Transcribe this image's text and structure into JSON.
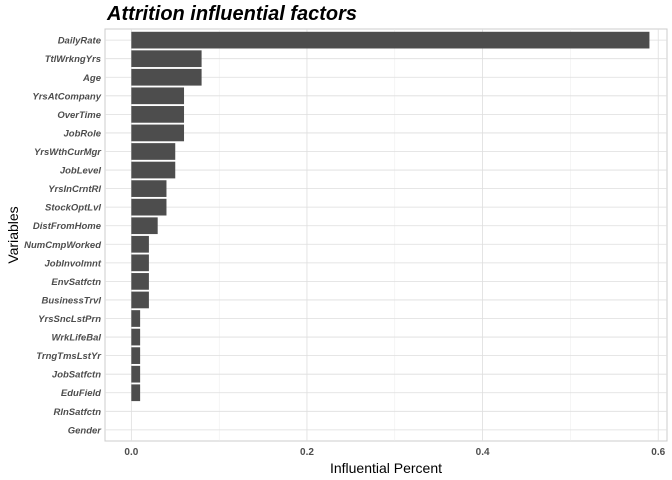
{
  "chart_data": {
    "type": "bar",
    "orientation": "horizontal",
    "title": "Attrition influential factors",
    "xlabel": "Influential Percent",
    "ylabel": "Variables",
    "xlim": [
      -0.03,
      0.61
    ],
    "xticks": [
      0.0,
      0.2,
      0.4,
      0.6
    ],
    "xtick_labels": [
      "0.0",
      "0.2",
      "0.4",
      "0.6"
    ],
    "grid": true,
    "bar_color": "#4d4d4d",
    "categories": [
      "DailyRate",
      "TtlWrkngYrs",
      "Age",
      "YrsAtCompany",
      "OverTime",
      "JobRole",
      "YrsWthCurMgr",
      "JobLevel",
      "YrsInCrntRl",
      "StockOptLvl",
      "DistFromHome",
      "NumCmpWorked",
      "JobInvolmnt",
      "EnvSatfctn",
      "BusinessTrvl",
      "YrsSncLstPrn",
      "WrkLifeBal",
      "TrngTmsLstYr",
      "JobSatfctn",
      "EduField",
      "RlnSatfctn",
      "Gender"
    ],
    "values": [
      0.59,
      0.08,
      0.08,
      0.06,
      0.06,
      0.06,
      0.05,
      0.05,
      0.04,
      0.04,
      0.03,
      0.02,
      0.02,
      0.02,
      0.02,
      0.01,
      0.01,
      0.01,
      0.01,
      0.01,
      0.0,
      0.0
    ]
  }
}
